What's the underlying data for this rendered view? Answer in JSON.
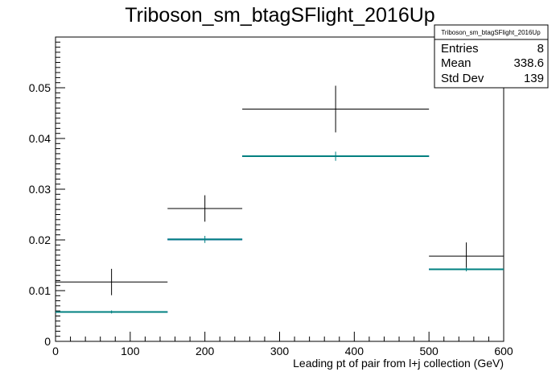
{
  "chart_data": {
    "type": "histogram",
    "title": "Triboson_sm_btagSFlight_2016Up",
    "xlabel": "Leading pt of pair from l+j collection (GeV)",
    "ylabel": "",
    "xlim": [
      0,
      600
    ],
    "ylim": [
      0,
      0.06
    ],
    "x_ticks": [
      "0",
      "100",
      "200",
      "300",
      "400",
      "500",
      "600"
    ],
    "y_ticks": [
      "0",
      "0.01",
      "0.02",
      "0.03",
      "0.04",
      "0.05"
    ],
    "y_tick_values": [
      0,
      0.01,
      0.02,
      0.03,
      0.04,
      0.05
    ],
    "bin_edges": [
      0,
      150,
      250,
      500,
      600
    ],
    "series": [
      {
        "name": "",
        "color": "#000000",
        "values": [
          0.0117,
          0.0262,
          0.0458,
          0.0168
        ],
        "errors": [
          0.0026,
          0.0026,
          0.0046,
          0.0027
        ]
      },
      {
        "name": "",
        "color": "#008080",
        "values": [
          0.0058,
          0.0201,
          0.0365,
          0.0142
        ],
        "errors": [
          0.0003,
          0.0007,
          0.0009,
          0.0004
        ]
      },
      {
        "name": "",
        "color": "#0000cc",
        "values": [
          0.0058,
          0.0201,
          0.0365,
          0.0142
        ],
        "errors": [
          0,
          0,
          0,
          0
        ]
      }
    ],
    "stats_box": {
      "title": "Triboson_sm_btagSFlight_2016Up",
      "rows": [
        {
          "label": "Entries",
          "value": "8"
        },
        {
          "label": "Mean",
          "value": "338.6"
        },
        {
          "label": "Std Dev",
          "value": "139"
        }
      ]
    },
    "grid": false
  }
}
